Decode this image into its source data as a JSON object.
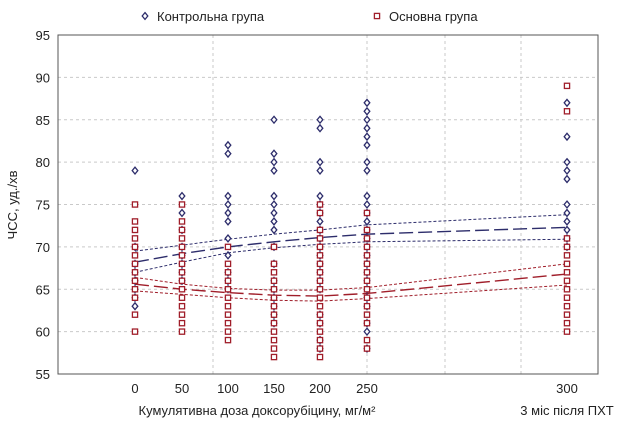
{
  "chart_data": {
    "type": "scatter",
    "title": "",
    "xlabel": "Кумулятивна доза доксорубіцину, мг/м²",
    "x_extra_label": "3 міс після ПХТ",
    "ylabel": "ЧСС, уд./хв",
    "ylim": [
      55,
      95
    ],
    "yticks": [
      55,
      60,
      65,
      70,
      75,
      80,
      85,
      90,
      95
    ],
    "xticks": [
      0,
      50,
      100,
      150,
      200,
      250,
      300
    ],
    "grid": true,
    "legend_position": "top",
    "series": [
      {
        "name": "Контрольна група",
        "color": "#2d2d6b",
        "marker": "diamond",
        "points": {
          "0": [
            79,
            70,
            68,
            67,
            66,
            65,
            64,
            63
          ],
          "50": [
            76,
            74,
            72,
            70,
            69,
            68,
            67,
            66
          ],
          "100": [
            82,
            81,
            76,
            75,
            74,
            73,
            71,
            69,
            67,
            66,
            65
          ],
          "150": [
            85,
            81,
            80,
            79,
            76,
            75,
            74,
            73,
            72,
            70,
            68,
            66,
            65,
            64,
            63,
            62,
            61
          ],
          "200": [
            85,
            84,
            80,
            79,
            76,
            75,
            74,
            73,
            72,
            71,
            70,
            69,
            68,
            67,
            66,
            65,
            62,
            61,
            59,
            58
          ],
          "250": [
            87,
            86,
            85,
            84,
            83,
            82,
            80,
            79,
            76,
            75,
            74,
            73,
            72,
            71,
            70,
            69,
            68,
            67,
            66,
            65,
            64,
            63,
            61,
            60,
            58
          ],
          "300": [
            87,
            83,
            80,
            79,
            78,
            75,
            74,
            73,
            72,
            71,
            70
          ]
        },
        "fit": [
          [
            0,
            68.2
          ],
          [
            50,
            69.2
          ],
          [
            100,
            70.0
          ],
          [
            150,
            70.6
          ],
          [
            200,
            71.1
          ],
          [
            250,
            71.5
          ],
          [
            300,
            72.3
          ]
        ],
        "ci_upper": [
          [
            0,
            69.5
          ],
          [
            50,
            70.2
          ],
          [
            100,
            70.9
          ],
          [
            150,
            71.5
          ],
          [
            200,
            72.0
          ],
          [
            250,
            72.6
          ],
          [
            300,
            73.8
          ]
        ],
        "ci_lower": [
          [
            0,
            67.0
          ],
          [
            50,
            68.2
          ],
          [
            100,
            69.3
          ],
          [
            150,
            69.9
          ],
          [
            200,
            70.3
          ],
          [
            250,
            70.6
          ],
          [
            300,
            70.9
          ]
        ]
      },
      {
        "name": "Основна група",
        "color": "#a01e2a",
        "marker": "square",
        "points": {
          "0": [
            75,
            73,
            72,
            71,
            70,
            69,
            68,
            67,
            66,
            65,
            64,
            62,
            60
          ],
          "50": [
            75,
            73,
            72,
            71,
            70,
            69,
            68,
            67,
            66,
            65,
            64,
            63,
            62,
            61,
            60
          ],
          "100": [
            70,
            68,
            67,
            66,
            65,
            64,
            63,
            62,
            61,
            60,
            59
          ],
          "150": [
            70,
            68,
            67,
            66,
            65,
            64,
            63,
            62,
            61,
            60,
            59,
            58,
            57
          ],
          "200": [
            75,
            74,
            72,
            71,
            70,
            69,
            68,
            67,
            66,
            65,
            64,
            63,
            62,
            61,
            60,
            59,
            58,
            57
          ],
          "250": [
            74,
            72,
            71,
            70,
            69,
            68,
            67,
            66,
            65,
            64,
            63,
            62,
            61,
            59,
            58
          ],
          "300": [
            89,
            86,
            71,
            70,
            69,
            68,
            67,
            66,
            65,
            64,
            63,
            62,
            61,
            60
          ]
        },
        "fit": [
          [
            0,
            65.6
          ],
          [
            50,
            65.0
          ],
          [
            100,
            64.6
          ],
          [
            150,
            64.3
          ],
          [
            200,
            64.2
          ],
          [
            250,
            64.5
          ],
          [
            300,
            66.8
          ]
        ],
        "ci_upper": [
          [
            0,
            66.4
          ],
          [
            50,
            65.6
          ],
          [
            100,
            65.1
          ],
          [
            150,
            64.9
          ],
          [
            200,
            64.9
          ],
          [
            250,
            65.2
          ],
          [
            300,
            68.0
          ]
        ],
        "ci_lower": [
          [
            0,
            64.8
          ],
          [
            50,
            64.4
          ],
          [
            100,
            64.0
          ],
          [
            150,
            63.7
          ],
          [
            200,
            63.6
          ],
          [
            250,
            63.9
          ],
          [
            300,
            65.5
          ]
        ]
      }
    ]
  }
}
